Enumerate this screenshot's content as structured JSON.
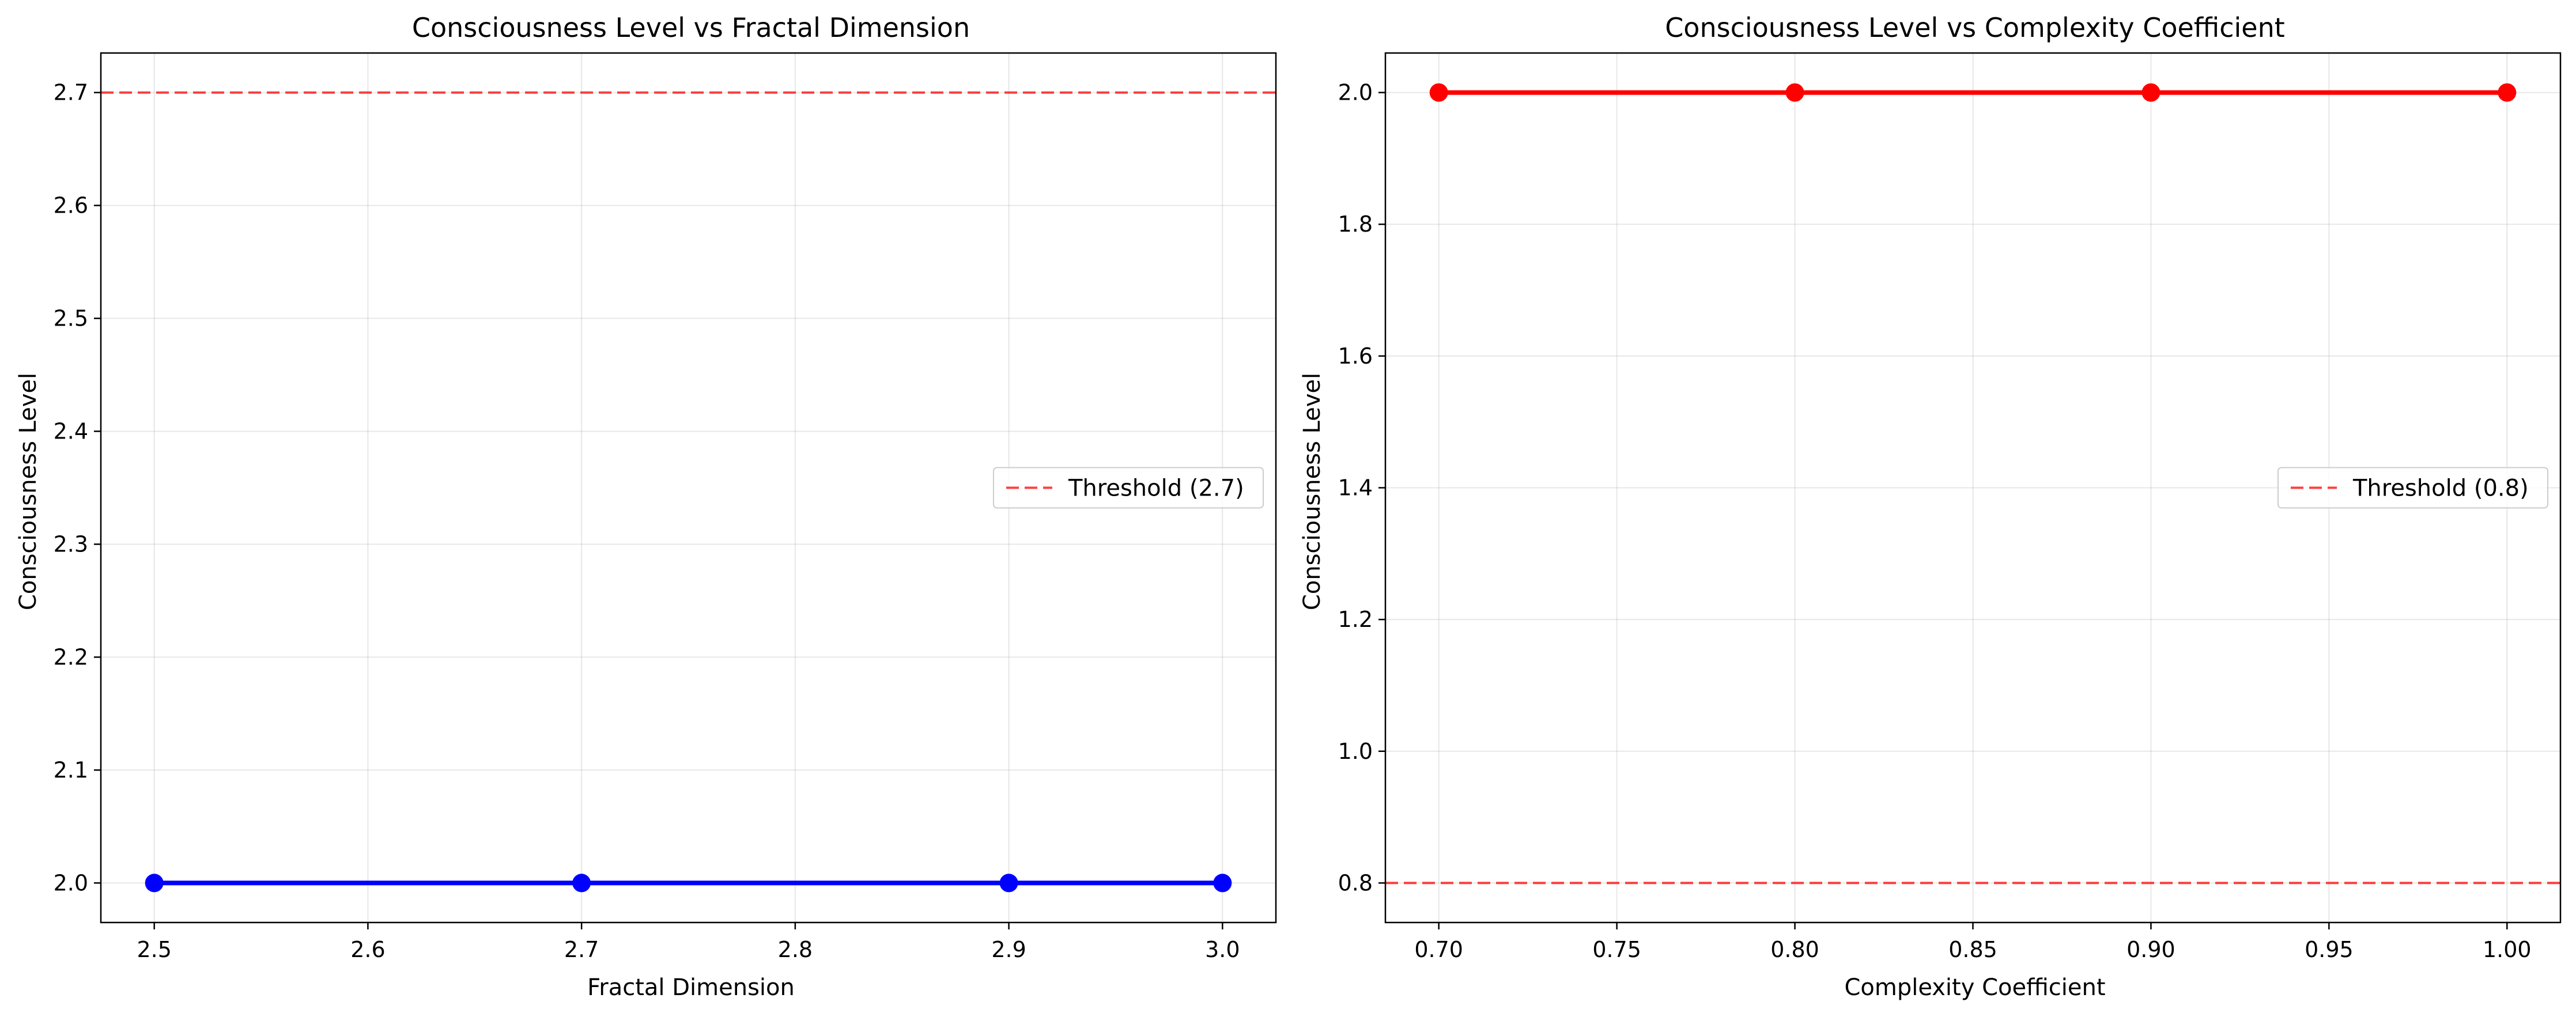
{
  "chart_data": [
    {
      "type": "line",
      "title": "Consciousness Level vs Fractal Dimension",
      "xlabel": "Fractal Dimension",
      "ylabel": "Consciousness Level",
      "x": [
        2.5,
        2.7,
        2.9,
        3.0
      ],
      "series": [
        {
          "values": [
            2.0,
            2.0,
            2.0,
            2.0
          ],
          "color": "#0000ff",
          "marker": "circle"
        }
      ],
      "xlim": [
        2.475,
        3.025
      ],
      "ylim": [
        1.965,
        2.735
      ],
      "xticks": [
        2.5,
        2.6,
        2.7,
        2.8,
        2.9,
        3.0
      ],
      "xtick_labels": [
        "2.5",
        "2.6",
        "2.7",
        "2.8",
        "2.9",
        "3.0"
      ],
      "yticks": [
        2.0,
        2.1,
        2.2,
        2.3,
        2.4,
        2.5,
        2.6,
        2.7
      ],
      "ytick_labels": [
        "2.0",
        "2.1",
        "2.2",
        "2.3",
        "2.4",
        "2.5",
        "2.6",
        "2.7"
      ],
      "threshold": {
        "value": 2.7,
        "label": "Threshold (2.7)",
        "color": "#ff0000",
        "style": "dashed"
      },
      "grid": true,
      "legend": "center-right"
    },
    {
      "type": "line",
      "title": "Consciousness Level vs Complexity Coefficient",
      "xlabel": "Complexity Coefficient",
      "ylabel": "Consciousness Level",
      "x": [
        0.7,
        0.8,
        0.9,
        1.0
      ],
      "series": [
        {
          "values": [
            2.0,
            2.0,
            2.0,
            2.0
          ],
          "color": "#ff0000",
          "marker": "circle"
        }
      ],
      "xlim": [
        0.685,
        1.015
      ],
      "ylim": [
        0.74,
        2.06
      ],
      "xticks": [
        0.7,
        0.75,
        0.8,
        0.85,
        0.9,
        0.95,
        1.0
      ],
      "xtick_labels": [
        "0.70",
        "0.75",
        "0.80",
        "0.85",
        "0.90",
        "0.95",
        "1.00"
      ],
      "yticks": [
        0.8,
        1.0,
        1.2,
        1.4,
        1.6,
        1.8,
        2.0
      ],
      "ytick_labels": [
        "0.8",
        "1.0",
        "1.2",
        "1.4",
        "1.6",
        "1.8",
        "2.0"
      ],
      "threshold": {
        "value": 0.8,
        "label": "Threshold (0.8)",
        "color": "#ff0000",
        "style": "dashed"
      },
      "grid": true,
      "legend": "center-right"
    }
  ]
}
